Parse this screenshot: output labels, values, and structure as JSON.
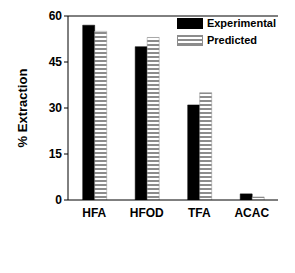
{
  "chart_data": {
    "type": "bar",
    "categories": [
      "HFA",
      "HFOD",
      "TFA",
      "ACAC"
    ],
    "series": [
      {
        "name": "Experimental",
        "color": "#000000",
        "values": [
          57,
          50,
          31,
          2
        ]
      },
      {
        "name": "Predicted",
        "color": "#8c8c8c",
        "values": [
          55,
          53,
          35,
          1
        ]
      }
    ],
    "y_label": "% Extraction",
    "ylim": [
      0,
      60
    ],
    "yticks": [
      0,
      15,
      30,
      45,
      60
    ],
    "grid": false,
    "legend": "upper right"
  }
}
